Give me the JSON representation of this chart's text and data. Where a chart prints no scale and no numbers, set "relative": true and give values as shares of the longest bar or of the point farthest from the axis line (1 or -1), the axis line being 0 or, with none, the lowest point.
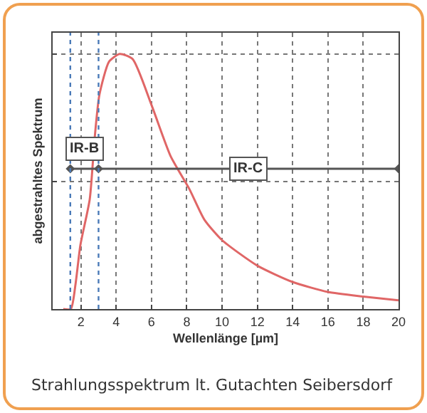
{
  "chart_data": {
    "type": "line",
    "relative": true,
    "xlabel": "Wellenlänge [µm]",
    "ylabel": "abgestrahltes Spektrum",
    "x": [
      1.0,
      1.43,
      1.7,
      1.97,
      2.5,
      2.78,
      3.05,
      3.6,
      4.2,
      4.93,
      6.0,
      7.08,
      8.15,
      9,
      10,
      12,
      14,
      16,
      18,
      20
    ],
    "series": [
      {
        "color": "#e06666",
        "values": [
          0,
          0,
          0.1,
          0.25,
          0.43,
          0.67,
          0.84,
          0.97,
          1,
          0.98,
          0.8,
          0.6,
          0.47,
          0.35,
          0.27,
          0.17,
          0.106,
          0.067,
          0.049,
          0.034
        ]
      },
      {
        "color": "#555555",
        "marker": "diamond",
        "x": [
          1.4,
          3,
          20
        ],
        "values": [
          0.55,
          0.55,
          0.55
        ]
      }
    ],
    "xlim": [
      0.4,
      20
    ],
    "xticks": [
      2,
      4,
      6,
      8,
      10,
      12,
      14,
      16,
      18,
      20
    ],
    "grid": true,
    "marker": "none",
    "line_style": "solid",
    "ref_lines": [
      {
        "axis": "x",
        "value": 1.4,
        "color": "#4a7ab8",
        "line_style": "dotted"
      },
      {
        "axis": "x",
        "value": 3,
        "color": "#4a7ab8",
        "line_style": "dotted"
      }
    ],
    "annotations": [
      {
        "text": "IR-B",
        "x": 2.2,
        "y": 0.63
      },
      {
        "text": "IR-C",
        "x": 11.5,
        "y": 0.55
      },
      "Strahlungsspektrum lt. Gutachten Seibersdorf"
    ]
  }
}
